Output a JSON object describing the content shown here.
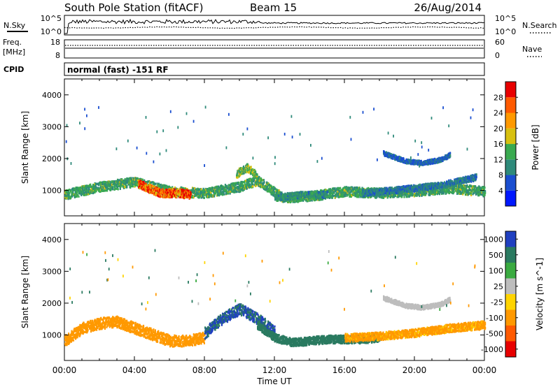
{
  "header": {
    "station": "South Pole Station (fitACF)",
    "beam": "Beam 15",
    "date": "26/Aug/2014"
  },
  "noise_panel": {
    "left_label": "N.Sky",
    "right_label": "N.Search",
    "tick_top": "10^5",
    "tick_bottom": "10^0"
  },
  "freq_panel": {
    "left_label_1": "Freq.",
    "left_label_2": "[MHz]",
    "left_tick_top": "18",
    "left_tick_bottom": "8",
    "right_label": "Nave",
    "right_tick_top": "60",
    "right_tick_bottom": "0"
  },
  "cpid_panel": {
    "label": "CPID",
    "text": "normal (fast) -151 RF"
  },
  "colors": {
    "power": [
      "#0018ff",
      "#1a4ed0",
      "#2e8a7a",
      "#3aaa50",
      "#d8c010",
      "#ff9900",
      "#ff5a00",
      "#e80000"
    ],
    "velocity": [
      "#2040c0",
      "#2a7a60",
      "#3aaa40",
      "#bdbdbd",
      "#ffd400",
      "#ff9900",
      "#ff5a00",
      "#e80000"
    ]
  },
  "chart_data": [
    {
      "type": "heatmap",
      "parameter": "Power",
      "ylabel": "Slant Range [km]",
      "ylim": [
        200,
        4500
      ],
      "y_ticks": [
        1000,
        2000,
        3000,
        4000
      ],
      "x_ticks": [
        "00:00",
        "04:00",
        "08:00",
        "12:00",
        "16:00",
        "20:00",
        "00:00"
      ],
      "colorbar": {
        "label": "Power [dB]",
        "ticks": [
          4,
          8,
          12,
          16,
          20,
          24,
          28
        ],
        "range": [
          0,
          32
        ]
      },
      "bands": [
        {
          "t": [
            0.0,
            0.8,
            2.0,
            4.0,
            6.0,
            8.0,
            10.0,
            11.0,
            12.5,
            14.0,
            16.0,
            18.0,
            20.0,
            22.0,
            24.0
          ],
          "r": [
            850,
            950,
            1100,
            1250,
            950,
            900,
            1100,
            1300,
            750,
            800,
            950,
            900,
            950,
            1050,
            950
          ],
          "width": 300,
          "peak": 14
        },
        {
          "t": [
            4.2,
            4.8,
            5.5,
            6.5,
            7.2
          ],
          "r": [
            1200,
            1050,
            900,
            900,
            850
          ],
          "width": 260,
          "peak": 29
        },
        {
          "t": [
            9.8,
            10.4,
            11.0
          ],
          "r": [
            1500,
            1700,
            1450
          ],
          "width": 250,
          "peak": 17
        },
        {
          "t": [
            12.0,
            13.5,
            15.0
          ],
          "r": [
            750,
            850,
            850
          ],
          "width": 200,
          "peak": 12
        },
        {
          "t": [
            18.2,
            19.5,
            20.5,
            21.5,
            22.0
          ],
          "r": [
            2150,
            1900,
            1850,
            1950,
            2100
          ],
          "width": 140,
          "peak": 8
        },
        {
          "t": [
            17.0,
            19.0,
            21.5,
            23.5
          ],
          "r": [
            900,
            1000,
            1150,
            1400
          ],
          "width": 200,
          "peak": 10
        }
      ]
    },
    {
      "type": "heatmap",
      "parameter": "Velocity",
      "ylabel": "Slant Range [km]",
      "ylim": [
        200,
        4500
      ],
      "y_ticks": [
        1000,
        2000,
        3000,
        4000
      ],
      "x_ticks": [
        "00:00",
        "04:00",
        "08:00",
        "12:00",
        "16:00",
        "20:00",
        "00:00"
      ],
      "xlabel": "Time UT",
      "colorbar": {
        "label": "Velocity [m s^-1]",
        "ticks": [
          1000,
          500,
          100,
          25,
          -25,
          -100,
          -500,
          -1000
        ]
      },
      "bands": [
        {
          "t": [
            0.0,
            1.0,
            2.0,
            3.0,
            4.0,
            5.0,
            6.0,
            7.0,
            8.0
          ],
          "r": [
            800,
            1200,
            1350,
            1400,
            1200,
            1000,
            800,
            800,
            900
          ],
          "width": 350,
          "peak": -300
        },
        {
          "t": [
            8.0,
            9.0,
            10.0,
            11.0,
            12.0
          ],
          "r": [
            1050,
            1500,
            1800,
            1500,
            1100
          ],
          "width": 350,
          "peak": 600
        },
        {
          "t": [
            11.0,
            12.0,
            13.0,
            14.0,
            15.0,
            16.0,
            17.0,
            18.0
          ],
          "r": [
            1300,
            900,
            750,
            800,
            850,
            850,
            850,
            900
          ],
          "width": 250,
          "peak": 300
        },
        {
          "t": [
            16.0,
            18.0,
            20.0,
            22.0,
            24.0
          ],
          "r": [
            900,
            950,
            1050,
            1200,
            1300
          ],
          "width": 250,
          "peak": -150
        },
        {
          "t": [
            18.2,
            19.5,
            20.5,
            21.5,
            22.0
          ],
          "r": [
            2150,
            1900,
            1850,
            1950,
            2100
          ],
          "width": 140,
          "peak": 15
        }
      ]
    }
  ]
}
